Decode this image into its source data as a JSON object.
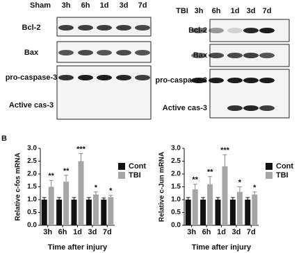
{
  "panel_label": "B",
  "blots": [
    {
      "group": "Sham",
      "times": [
        "3h",
        "6h",
        "1d",
        "3d",
        "7d"
      ],
      "rows": [
        "Bcl-2",
        "Bax",
        "pro-caspase-3",
        "Active cas-3"
      ]
    },
    {
      "group": "TBI",
      "times": [
        "3h",
        "6h",
        "1d",
        "3d",
        "7d"
      ],
      "rows": [
        "Bcl-2",
        "Bax",
        "pro-caspase-3",
        "Active cas-3"
      ]
    }
  ],
  "chart_data": [
    {
      "type": "bar",
      "ylabel": "Relative c-fos mRNA",
      "xlabel": "Time after injury",
      "categories": [
        "3h",
        "6h",
        "1d",
        "3d",
        "7d"
      ],
      "series": [
        {
          "name": "Cont",
          "color": "#111111",
          "values": [
            1.0,
            1.0,
            1.0,
            1.0,
            1.0
          ],
          "errors": [
            0.08,
            0.08,
            0.08,
            0.08,
            0.06
          ]
        },
        {
          "name": "TBI",
          "color": "#a6a6a6",
          "values": [
            1.5,
            1.7,
            2.5,
            1.2,
            1.1
          ],
          "errors": [
            0.25,
            0.25,
            0.3,
            0.1,
            0.07
          ]
        }
      ],
      "significance": [
        "**",
        "**",
        "***",
        "*",
        "*"
      ],
      "ylim": [
        0,
        3.0
      ],
      "yticks": [
        {
          "value": 0,
          "label": "0.0"
        },
        {
          "value": 0.5,
          "label": "0.5"
        },
        {
          "value": 1,
          "label": "1.0"
        },
        {
          "value": 1.5,
          "label": "1.5"
        },
        {
          "value": 2,
          "label": "2.0"
        },
        {
          "value": 2.5,
          "label": "2.5"
        },
        {
          "value": 3,
          "label": "3.0"
        }
      ]
    },
    {
      "type": "bar",
      "ylabel": "Relative c-Jun mRNA",
      "xlabel": "Time after injury",
      "categories": [
        "3h",
        "6h",
        "1d",
        "3d",
        "7d"
      ],
      "series": [
        {
          "name": "Cont",
          "color": "#111111",
          "values": [
            1.0,
            1.0,
            1.0,
            1.0,
            1.0
          ],
          "errors": [
            0.08,
            0.08,
            0.08,
            0.08,
            0.08
          ]
        },
        {
          "name": "TBI",
          "color": "#a6a6a6",
          "values": [
            1.4,
            1.6,
            2.3,
            1.3,
            1.2
          ],
          "errors": [
            0.2,
            0.3,
            0.45,
            0.2,
            0.1
          ]
        }
      ],
      "significance": [
        "**",
        "**",
        "***",
        "*",
        "*"
      ],
      "ylim": [
        0,
        3.0
      ],
      "yticks": [
        {
          "value": 0,
          "label": "0.0"
        },
        {
          "value": 0.5,
          "label": "0.5"
        },
        {
          "value": 1,
          "label": "1.0"
        },
        {
          "value": 1.5,
          "label": "1.5"
        },
        {
          "value": 2,
          "label": "2.0"
        },
        {
          "value": 2.5,
          "label": "2.5"
        },
        {
          "value": 3,
          "label": "3.0"
        }
      ]
    }
  ]
}
